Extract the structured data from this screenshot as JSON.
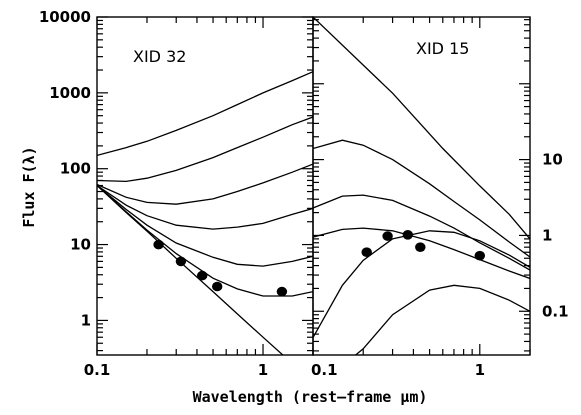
{
  "figure": {
    "xlabel": "Wavelength (rest–frame μm)",
    "ylabel": "Flux F(λ)"
  },
  "chart_data": [
    {
      "type": "line",
      "title": "XID 32",
      "xlabel": "Wavelength (rest–frame μm)",
      "ylabel": "Flux F(λ)",
      "xscale": "log",
      "yscale": "log",
      "xlim": [
        0.1,
        2
      ],
      "ylim": [
        0.35,
        10000
      ],
      "x_ticks": [
        {
          "value": 0.1,
          "label": "0.1"
        },
        {
          "value": 1,
          "label": "1"
        }
      ],
      "y_ticks": [
        {
          "value": 1,
          "label": "1"
        },
        {
          "value": 10,
          "label": "10"
        },
        {
          "value": 100,
          "label": "100"
        },
        {
          "value": 1000,
          "label": "1000"
        },
        {
          "value": 10000,
          "label": "10000"
        }
      ],
      "model_curves": [
        {
          "x": [
            0.1,
            0.15,
            0.2,
            0.3,
            0.5,
            0.7,
            1,
            1.5,
            2
          ],
          "y": [
            150,
            190,
            230,
            320,
            500,
            700,
            1000,
            1450,
            1900
          ]
        },
        {
          "x": [
            0.1,
            0.15,
            0.2,
            0.3,
            0.5,
            0.7,
            1,
            1.5,
            2
          ],
          "y": [
            70,
            68,
            75,
            95,
            140,
            190,
            260,
            380,
            480
          ]
        },
        {
          "x": [
            0.1,
            0.15,
            0.2,
            0.3,
            0.5,
            0.7,
            1,
            1.5,
            2
          ],
          "y": [
            62,
            42,
            36,
            34,
            40,
            50,
            65,
            90,
            115
          ]
        },
        {
          "x": [
            0.1,
            0.15,
            0.2,
            0.3,
            0.5,
            0.7,
            1,
            1.5,
            2
          ],
          "y": [
            60,
            33,
            24,
            18,
            16,
            17,
            19,
            25,
            30
          ]
        },
        {
          "x": [
            0.1,
            0.15,
            0.2,
            0.3,
            0.5,
            0.7,
            1,
            1.5,
            2
          ],
          "y": [
            60,
            29,
            18,
            10.5,
            6.8,
            5.5,
            5.2,
            6,
            7
          ]
        },
        {
          "x": [
            0.1,
            0.15,
            0.2,
            0.3,
            0.5,
            0.7,
            1,
            1.5,
            2
          ],
          "y": [
            60,
            27,
            15.5,
            7.6,
            3.6,
            2.6,
            2.1,
            2.1,
            2.4
          ]
        },
        {
          "x": [
            0.1,
            0.15,
            0.2,
            0.3,
            0.5,
            0.7,
            1,
            1.5,
            2
          ],
          "y": [
            60,
            26.5,
            15,
            6.6,
            2.4,
            1.22,
            0.6,
            0.27,
            0.15
          ]
        }
      ],
      "points": {
        "x": [
          0.235,
          0.32,
          0.43,
          0.53,
          1.3
        ],
        "y": [
          10,
          6,
          3.9,
          2.8,
          2.4
        ]
      }
    },
    {
      "type": "line",
      "title": "XID 15",
      "xlabel": "Wavelength (rest–frame μm)",
      "ylabel": "",
      "xscale": "log",
      "yscale": "log",
      "xlim": [
        0.1,
        2
      ],
      "ylim": [
        0.0265,
        759
      ],
      "x_ticks": [
        {
          "value": 0.1,
          "label": "0.1"
        },
        {
          "value": 1,
          "label": "1"
        }
      ],
      "y_ticks": [
        {
          "value": 0.1,
          "label": "0.1"
        },
        {
          "value": 1,
          "label": "1"
        },
        {
          "value": 10,
          "label": "10"
        }
      ],
      "model_curves": [
        {
          "x": [
            0.1,
            0.3,
            0.6,
            1,
            1.5,
            2
          ],
          "y": [
            759,
            75,
            14,
            4.5,
            1.9,
            0.9
          ]
        },
        {
          "x": [
            0.1,
            0.15,
            0.2,
            0.3,
            0.5,
            0.7,
            1,
            1.5,
            2
          ],
          "y": [
            14,
            18,
            15.5,
            10,
            4.8,
            2.8,
            1.6,
            0.82,
            0.52
          ]
        },
        {
          "x": [
            0.1,
            0.15,
            0.2,
            0.3,
            0.5,
            0.7,
            1,
            1.5,
            2
          ],
          "y": [
            2.3,
            3.3,
            3.4,
            2.9,
            1.8,
            1.25,
            0.8,
            0.5,
            0.35
          ]
        },
        {
          "x": [
            0.1,
            0.15,
            0.2,
            0.3,
            0.5,
            0.7,
            1,
            1.5,
            2
          ],
          "y": [
            0.95,
            1.2,
            1.25,
            1.15,
            0.85,
            0.65,
            0.48,
            0.34,
            0.27
          ]
        },
        {
          "x": [
            0.1,
            0.15,
            0.2,
            0.3,
            0.5,
            0.7,
            1,
            1.5,
            2
          ],
          "y": [
            0.045,
            0.22,
            0.47,
            0.9,
            1.15,
            1.1,
            0.85,
            0.55,
            0.38
          ]
        },
        {
          "x": [
            0.18,
            0.2,
            0.3,
            0.5,
            0.7,
            1,
            1.5,
            2
          ],
          "y": [
            0.0265,
            0.032,
            0.09,
            0.19,
            0.22,
            0.2,
            0.14,
            0.1
          ]
        }
      ],
      "points": {
        "x": [
          0.21,
          0.28,
          0.37,
          0.44,
          1.0
        ],
        "y": [
          0.6,
          0.98,
          1.02,
          0.7,
          0.54
        ]
      }
    }
  ]
}
